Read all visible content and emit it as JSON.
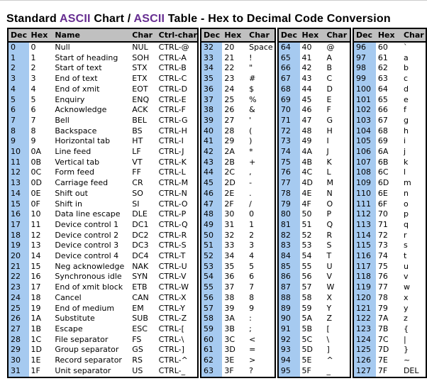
{
  "title": {
    "parts": [
      {
        "text": "Standard ",
        "color": "#000000"
      },
      {
        "text": "ASCII",
        "color": "#662d91"
      },
      {
        "text": " Chart / ",
        "color": "#000000"
      },
      {
        "text": "ASCII",
        "color": "#662d91"
      },
      {
        "text": " Table - Hex to Decimal Code Conversion",
        "color": "#000000"
      }
    ]
  },
  "colors": {
    "header_bg": "#c0c0c0",
    "dec_column_bg": "#a6caf0",
    "table_border": "#000000",
    "title_accent": "#662d91"
  },
  "groups": [
    {
      "headers": [
        "Dec",
        "Hex",
        "Name",
        "Char",
        "Ctrl-char"
      ],
      "cols": [
        "dec",
        "hex",
        "name",
        "char",
        "ctrl-char"
      ],
      "rows": [
        [
          "0",
          "0",
          "Null",
          "NUL",
          "CTRL-@"
        ],
        [
          "1",
          "1",
          "Start of heading",
          "SOH",
          "CTRL-A"
        ],
        [
          "2",
          "2",
          "Start of text",
          "STX",
          "CTRL-B"
        ],
        [
          "3",
          "3",
          "End of text",
          "ETX",
          "CTRL-C"
        ],
        [
          "4",
          "4",
          "End of xmit",
          "EOT",
          "CTRL-D"
        ],
        [
          "5",
          "5",
          "Enquiry",
          "ENQ",
          "CTRL-E"
        ],
        [
          "6",
          "6",
          "Acknowledge",
          "ACK",
          "CTRL-F"
        ],
        [
          "7",
          "7",
          "Bell",
          "BEL",
          "CTRL-G"
        ],
        [
          "8",
          "8",
          "Backspace",
          "BS",
          "CTRL-H"
        ],
        [
          "9",
          "9",
          "Horizontal tab",
          "HT",
          "CTRL-I"
        ],
        [
          "10",
          "0A",
          "Line feed",
          "LF",
          "CTRL-J"
        ],
        [
          "11",
          "0B",
          "Vertical tab",
          "VT",
          "CTRL-K"
        ],
        [
          "12",
          "0C",
          "Form feed",
          "FF",
          "CTRL-L"
        ],
        [
          "13",
          "0D",
          "Carriage feed",
          "CR",
          "CTRL-M"
        ],
        [
          "14",
          "0E",
          "Shift out",
          "SO",
          "CTRL-N"
        ],
        [
          "15",
          "0F",
          "Shift in",
          "SI",
          "CTRL-O"
        ],
        [
          "16",
          "10",
          "Data line escape",
          "DLE",
          "CTRL-P"
        ],
        [
          "17",
          "11",
          "Device control 1",
          "DC1",
          "CTRL-Q"
        ],
        [
          "18",
          "12",
          "Device control 2",
          "DC2",
          "CTRL-R"
        ],
        [
          "19",
          "13",
          "Device control 3",
          "DC3",
          "CTRL-S"
        ],
        [
          "20",
          "14",
          "Device control 4",
          "DC4",
          "CTRL-T"
        ],
        [
          "21",
          "15",
          "Neg acknowledge",
          "NAK",
          "CTRL-U"
        ],
        [
          "22",
          "16",
          "Synchronous idle",
          "SYN",
          "CTRL-V"
        ],
        [
          "23",
          "17",
          "End of xmit block",
          "ETB",
          "CTRL-W"
        ],
        [
          "24",
          "18",
          "Cancel",
          "CAN",
          "CTRL-X"
        ],
        [
          "25",
          "19",
          "End of medium",
          "EM",
          "CTRL-Y"
        ],
        [
          "26",
          "1A",
          "Substitute",
          "SUB",
          "CTRL-Z"
        ],
        [
          "27",
          "1B",
          "Escape",
          "ESC",
          "CTRL-["
        ],
        [
          "28",
          "1C",
          "File separator",
          "FS",
          "CTRL-\\"
        ],
        [
          "29",
          "1D",
          "Group separator",
          "GS",
          "CTRL-]"
        ],
        [
          "30",
          "1E",
          "Record separator",
          "RS",
          "CTRL-^"
        ],
        [
          "31",
          "1F",
          "Unit separator",
          "US",
          "CTRL-_"
        ]
      ]
    },
    {
      "headers": [
        "Dec",
        "Hex",
        "Char"
      ],
      "cols": [
        "dec",
        "hex",
        "char"
      ],
      "rows": [
        [
          "32",
          "20",
          "Space"
        ],
        [
          "33",
          "21",
          "!"
        ],
        [
          "34",
          "22",
          "\""
        ],
        [
          "35",
          "23",
          "#"
        ],
        [
          "36",
          "24",
          "$"
        ],
        [
          "37",
          "25",
          "%"
        ],
        [
          "38",
          "26",
          "&"
        ],
        [
          "39",
          "27",
          "'"
        ],
        [
          "40",
          "28",
          "("
        ],
        [
          "41",
          "29",
          ")"
        ],
        [
          "42",
          "2A",
          "*"
        ],
        [
          "43",
          "2B",
          "+"
        ],
        [
          "44",
          "2C",
          ","
        ],
        [
          "45",
          "2D",
          "-"
        ],
        [
          "46",
          "2E",
          "."
        ],
        [
          "47",
          "2F",
          "/"
        ],
        [
          "48",
          "30",
          "0"
        ],
        [
          "49",
          "31",
          "1"
        ],
        [
          "50",
          "32",
          "2"
        ],
        [
          "51",
          "33",
          "3"
        ],
        [
          "52",
          "34",
          "4"
        ],
        [
          "53",
          "35",
          "5"
        ],
        [
          "54",
          "36",
          "6"
        ],
        [
          "55",
          "37",
          "7"
        ],
        [
          "56",
          "38",
          "8"
        ],
        [
          "57",
          "39",
          "9"
        ],
        [
          "58",
          "3A",
          ":"
        ],
        [
          "59",
          "3B",
          ";"
        ],
        [
          "60",
          "3C",
          "<"
        ],
        [
          "61",
          "3D",
          "="
        ],
        [
          "62",
          "3E",
          ">"
        ],
        [
          "63",
          "3F",
          "?"
        ]
      ]
    },
    {
      "headers": [
        "Dec",
        "Hex",
        "Char"
      ],
      "cols": [
        "dec",
        "hex",
        "char"
      ],
      "rows": [
        [
          "64",
          "40",
          "@"
        ],
        [
          "65",
          "41",
          "A"
        ],
        [
          "66",
          "42",
          "B"
        ],
        [
          "67",
          "43",
          "C"
        ],
        [
          "68",
          "44",
          "D"
        ],
        [
          "69",
          "45",
          "E"
        ],
        [
          "70",
          "46",
          "F"
        ],
        [
          "71",
          "47",
          "G"
        ],
        [
          "72",
          "48",
          "H"
        ],
        [
          "73",
          "49",
          "I"
        ],
        [
          "74",
          "4A",
          "J"
        ],
        [
          "75",
          "4B",
          "K"
        ],
        [
          "76",
          "4C",
          "L"
        ],
        [
          "77",
          "4D",
          "M"
        ],
        [
          "78",
          "4E",
          "N"
        ],
        [
          "79",
          "4F",
          "O"
        ],
        [
          "80",
          "50",
          "P"
        ],
        [
          "81",
          "51",
          "Q"
        ],
        [
          "82",
          "52",
          "R"
        ],
        [
          "83",
          "53",
          "S"
        ],
        [
          "84",
          "54",
          "T"
        ],
        [
          "85",
          "55",
          "U"
        ],
        [
          "86",
          "56",
          "V"
        ],
        [
          "87",
          "57",
          "W"
        ],
        [
          "88",
          "58",
          "X"
        ],
        [
          "89",
          "59",
          "Y"
        ],
        [
          "90",
          "5A",
          "Z"
        ],
        [
          "91",
          "5B",
          "["
        ],
        [
          "92",
          "5C",
          "\\"
        ],
        [
          "93",
          "5D",
          "]"
        ],
        [
          "94",
          "5E",
          "^"
        ],
        [
          "95",
          "5F",
          "_"
        ]
      ]
    },
    {
      "headers": [
        "Dec",
        "Hex",
        "Char"
      ],
      "cols": [
        "dec",
        "hex",
        "char"
      ],
      "rows": [
        [
          "96",
          "60",
          "`"
        ],
        [
          "97",
          "61",
          "a"
        ],
        [
          "98",
          "62",
          "b"
        ],
        [
          "99",
          "63",
          "c"
        ],
        [
          "100",
          "64",
          "d"
        ],
        [
          "101",
          "65",
          "e"
        ],
        [
          "102",
          "66",
          "f"
        ],
        [
          "103",
          "67",
          "g"
        ],
        [
          "104",
          "68",
          "h"
        ],
        [
          "105",
          "69",
          "i"
        ],
        [
          "106",
          "6A",
          "j"
        ],
        [
          "107",
          "6B",
          "k"
        ],
        [
          "108",
          "6C",
          "l"
        ],
        [
          "109",
          "6D",
          "m"
        ],
        [
          "110",
          "6E",
          "n"
        ],
        [
          "111",
          "6F",
          "o"
        ],
        [
          "112",
          "70",
          "p"
        ],
        [
          "113",
          "71",
          "q"
        ],
        [
          "114",
          "72",
          "r"
        ],
        [
          "115",
          "73",
          "s"
        ],
        [
          "116",
          "74",
          "t"
        ],
        [
          "117",
          "75",
          "u"
        ],
        [
          "118",
          "76",
          "v"
        ],
        [
          "119",
          "77",
          "w"
        ],
        [
          "120",
          "78",
          "x"
        ],
        [
          "121",
          "79",
          "y"
        ],
        [
          "122",
          "7A",
          "z"
        ],
        [
          "123",
          "7B",
          "{"
        ],
        [
          "124",
          "7C",
          "|"
        ],
        [
          "125",
          "7D",
          "}"
        ],
        [
          "126",
          "7E",
          "~"
        ],
        [
          "127",
          "7F",
          "DEL"
        ]
      ]
    }
  ]
}
